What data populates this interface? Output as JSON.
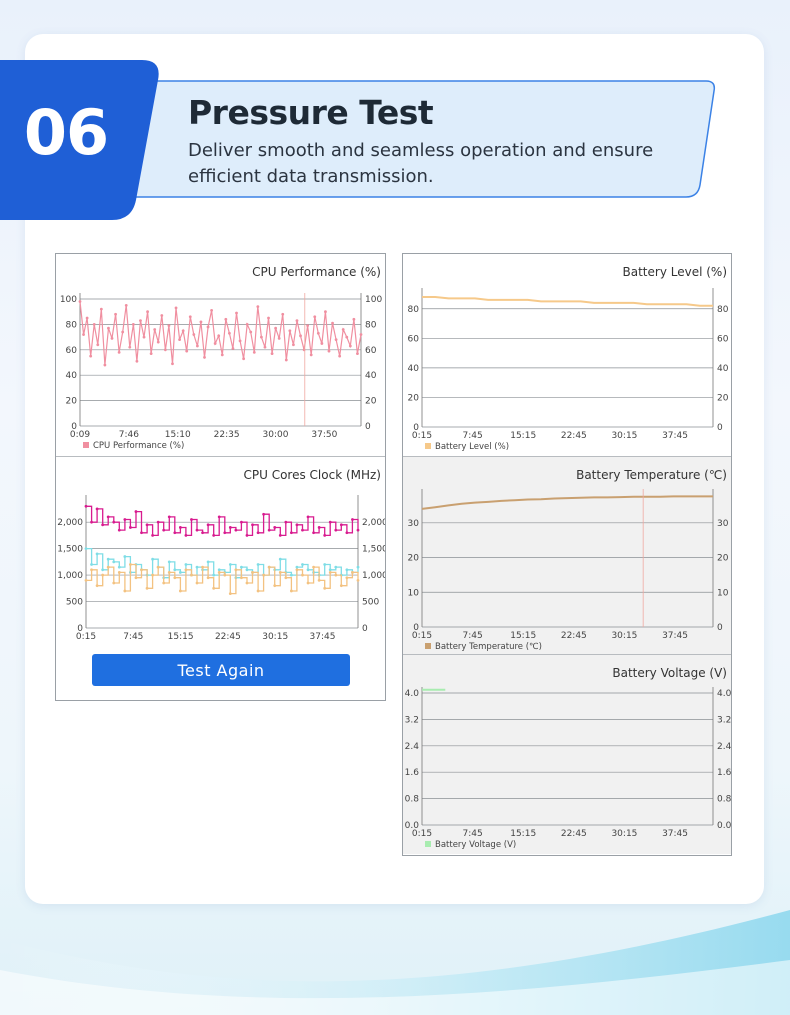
{
  "header": {
    "number": "06",
    "title": "Pressure Test",
    "subtitle": "Deliver smooth and seamless operation and ensure efficient data transmission."
  },
  "colors": {
    "badge": "#1f5fd6",
    "banner_fill": "#deedfb",
    "banner_stroke": "#3b82e6",
    "cpu_perf": "#f08fa0",
    "core_magenta": "#d81b8f",
    "core_cyan": "#7fdde6",
    "core_orange": "#f3c281",
    "battery_level": "#f6c98a",
    "battery_temp": "#c9a070",
    "battery_voltage": "#a8ecb0",
    "button": "#1f6fe0"
  },
  "left_panel": {
    "button_label": "Test Again"
  },
  "chart_data": [
    {
      "id": "cpu_perf",
      "type": "line",
      "title": "CPU Performance (%)",
      "x_ticks": [
        "0:09",
        "7:46",
        "15:10",
        "22:35",
        "30:00",
        "37:50"
      ],
      "y_ticks": [
        "0",
        "20",
        "40",
        "60",
        "80",
        "100"
      ],
      "ylim": [
        0,
        100
      ],
      "series": [
        {
          "name": "CPU Performance (%)",
          "values": [
            98,
            72,
            85,
            55,
            80,
            64,
            92,
            48,
            77,
            69,
            88,
            58,
            74,
            95,
            62,
            80,
            51,
            83,
            70,
            90,
            57,
            76,
            66,
            87,
            60,
            79,
            49,
            93,
            68,
            75,
            59,
            86,
            72,
            63,
            82,
            54,
            78,
            91,
            65,
            71,
            56,
            84,
            73,
            61,
            89,
            67,
            53,
            80,
            74,
            58,
            94,
            70,
            62,
            85,
            57,
            77,
            69,
            88,
            52,
            75,
            64,
            83,
            71,
            60,
            79,
            56,
            86,
            73,
            65,
            90,
            59,
            81,
            68,
            55,
            76,
            70,
            63,
            84,
            57,
            72
          ]
        }
      ]
    },
    {
      "id": "cpu_cores",
      "type": "line",
      "title": "CPU Cores Clock (MHz)",
      "x_ticks": [
        "0:15",
        "7:45",
        "15:15",
        "22:45",
        "30:15",
        "37:45"
      ],
      "y_ticks": [
        "0",
        "500",
        "1,000",
        "1,500",
        "2,000"
      ],
      "ylim": [
        0,
        2400
      ],
      "series": [
        {
          "values": [
            2300,
            2000,
            2250,
            1950,
            2100,
            2000,
            1850,
            2050,
            1900,
            2200,
            1800,
            1950,
            1750,
            2000,
            1850,
            2100,
            1800,
            1900,
            1750,
            2050,
            1850,
            1800,
            1950,
            1750,
            2100,
            1800,
            1900,
            1850,
            2000,
            1750,
            1950,
            1800,
            2150,
            1850,
            1900,
            1750,
            2000,
            1800,
            1950,
            1850,
            2100,
            1800,
            1900,
            1750,
            2000,
            1850,
            1950,
            1800,
            2050,
            1850
          ]
        },
        {
          "values": [
            1500,
            1200,
            1400,
            1100,
            1300,
            1250,
            1150,
            1350,
            1050,
            1200,
            1100,
            1000,
            1300,
            1150,
            950,
            1250,
            1100,
            1050,
            1200,
            1000,
            1150,
            1100,
            1250,
            1000,
            1100,
            1050,
            1200,
            950,
            1150,
            1100,
            1050,
            1200,
            1000,
            1150,
            1100,
            1300,
            1050,
            1000,
            1150,
            1200,
            1100,
            1050,
            1000,
            1200,
            1100,
            1150,
            1000,
            1100,
            1050,
            1150
          ]
        },
        {
          "values": [
            900,
            1100,
            800,
            1000,
            1150,
            850,
            1050,
            700,
            1200,
            950,
            1100,
            750,
            1000,
            1150,
            850,
            1050,
            950,
            700,
            1100,
            1000,
            850,
            1150,
            950,
            750,
            1050,
            1000,
            650,
            1100,
            950,
            850,
            1050,
            700,
            1000,
            1150,
            800,
            1050,
            950,
            700,
            1100,
            1000,
            850,
            1150,
            900,
            750,
            1050,
            1000,
            800,
            950,
            1050,
            900
          ]
        }
      ]
    },
    {
      "id": "battery_level",
      "type": "line",
      "title": "Battery Level (%)",
      "x_ticks": [
        "0:15",
        "7:45",
        "15:15",
        "22:45",
        "30:15",
        "37:45"
      ],
      "y_ticks": [
        "0",
        "20",
        "40",
        "60",
        "80"
      ],
      "ylim": [
        0,
        90
      ],
      "series": [
        {
          "name": "Battery Level (%)",
          "values": [
            88,
            88,
            87,
            87,
            87,
            86,
            86,
            86,
            86,
            85,
            85,
            85,
            85,
            84,
            84,
            84,
            84,
            83,
            83,
            83,
            83,
            82,
            82
          ]
        }
      ]
    },
    {
      "id": "battery_temp",
      "type": "line",
      "title": "Battery Temperature (℃)",
      "x_ticks": [
        "0:15",
        "7:45",
        "15:15",
        "22:45",
        "30:15",
        "37:45"
      ],
      "y_ticks": [
        "0",
        "10",
        "20",
        "30"
      ],
      "ylim": [
        0,
        38
      ],
      "series": [
        {
          "name": "Battery Temperature (℃)",
          "values": [
            34,
            34.5,
            35,
            35.5,
            35.8,
            36,
            36.3,
            36.5,
            36.7,
            36.8,
            37,
            37.1,
            37.2,
            37.3,
            37.3,
            37.4,
            37.5,
            37.5,
            37.5,
            37.6,
            37.6,
            37.6,
            37.6
          ]
        }
      ]
    },
    {
      "id": "battery_voltage",
      "type": "line",
      "title": "Battery Voltage (V)",
      "x_ticks": [
        "0:15",
        "7:45",
        "15:15",
        "22:45",
        "30:15",
        "37:45"
      ],
      "y_ticks": [
        "0.0",
        "0.8",
        "1.6",
        "2.4",
        "3.2",
        "4.0"
      ],
      "ylim": [
        0,
        4.0
      ],
      "series": [
        {
          "name": "Battery Voltage (V)",
          "values": [
            4.1,
            4.1,
            4.1
          ]
        }
      ]
    }
  ]
}
